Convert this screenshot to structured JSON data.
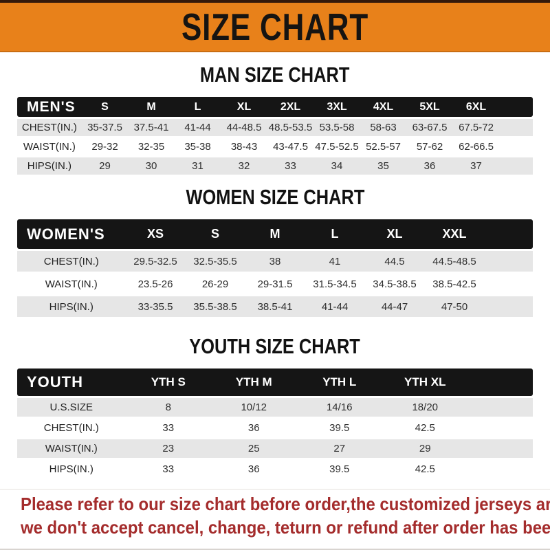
{
  "header": {
    "title": "SIZE CHART"
  },
  "colors": {
    "banner_orange": "#E8811A",
    "top_line": "#35190a",
    "bar_black": "#151515",
    "row_gray": "#E6E6E6",
    "note_red": "#A42C2C"
  },
  "tables": {
    "men": {
      "title": "MAN SIZE CHART",
      "header_label": "MEN'S",
      "columns": [
        "S",
        "M",
        "L",
        "XL",
        "2XL",
        "3XL",
        "4XL",
        "5XL",
        "6XL"
      ],
      "rows": [
        {
          "label": "CHEST(IN.)",
          "values": [
            "35-37.5",
            "37.5-41",
            "41-44",
            "44-48.5",
            "48.5-53.5",
            "53.5-58",
            "58-63",
            "63-67.5",
            "67.5-72"
          ]
        },
        {
          "label": "WAIST(IN.)",
          "values": [
            "29-32",
            "32-35",
            "35-38",
            "38-43",
            "43-47.5",
            "47.5-52.5",
            "52.5-57",
            "57-62",
            "62-66.5"
          ]
        },
        {
          "label": "HIPS(IN.)",
          "values": [
            "29",
            "30",
            "31",
            "32",
            "33",
            "34",
            "35",
            "36",
            "37"
          ]
        }
      ]
    },
    "women": {
      "title": "WOMEN SIZE CHART",
      "header_label": "WOMEN'S",
      "columns": [
        "XS",
        "S",
        "M",
        "L",
        "XL",
        "XXL"
      ],
      "rows": [
        {
          "label": "CHEST(IN.)",
          "values": [
            "29.5-32.5",
            "32.5-35.5",
            "38",
            "41",
            "44.5",
            "44.5-48.5"
          ]
        },
        {
          "label": "WAIST(IN.)",
          "values": [
            "23.5-26",
            "26-29",
            "29-31.5",
            "31.5-34.5",
            "34.5-38.5",
            "38.5-42.5"
          ]
        },
        {
          "label": "HIPS(IN.)",
          "values": [
            "33-35.5",
            "35.5-38.5",
            "38.5-41",
            "41-44",
            "44-47",
            "47-50"
          ]
        }
      ]
    },
    "youth": {
      "title": "YOUTH SIZE CHART",
      "header_label": "YOUTH",
      "columns": [
        "YTH S",
        "YTH M",
        "YTH L",
        "YTH XL"
      ],
      "rows": [
        {
          "label": "U.S.SIZE",
          "values": [
            "8",
            "10/12",
            "14/16",
            "18/20"
          ]
        },
        {
          "label": "CHEST(IN.)",
          "values": [
            "33",
            "36",
            "39.5",
            "42.5"
          ]
        },
        {
          "label": "WAIST(IN.)",
          "values": [
            "23",
            "25",
            "27",
            "29"
          ]
        },
        {
          "label": "HIPS(IN.)",
          "values": [
            "33",
            "36",
            "39.5",
            "42.5"
          ]
        }
      ]
    }
  },
  "footer": {
    "line1": "Please refer to our size chart before order,the customized jerseys are special products,",
    "line2": "we don't accept cancel, change, teturn or refund after order has been placed!"
  }
}
